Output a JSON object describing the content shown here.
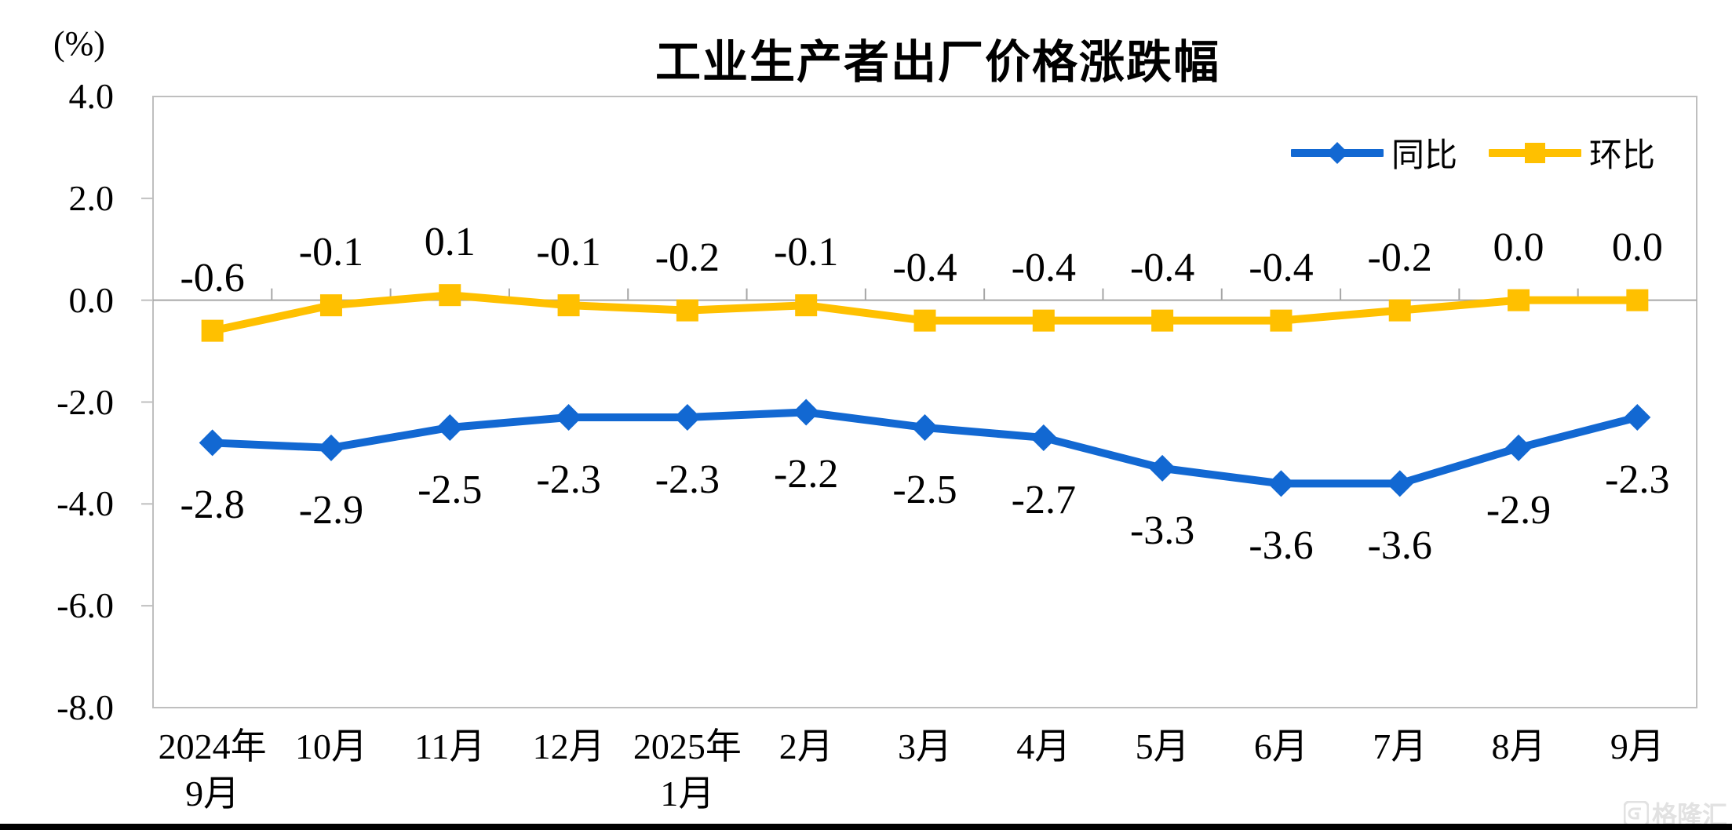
{
  "title": "工业生产者出厂价格涨跌幅",
  "unit_label": "(%)",
  "legend": [
    {
      "label": "同比",
      "color": "#1268D2",
      "marker": "diamond"
    },
    {
      "label": "环比",
      "color": "#FFC000",
      "marker": "square"
    }
  ],
  "watermark": "格隆汇",
  "colors": {
    "series_yoy": "#1268D2",
    "series_mom": "#FFC000",
    "axis_border": "#BFBFBF",
    "zero_line": "#A6A6A6",
    "text": "#000000"
  },
  "chart_data": {
    "type": "line",
    "title": "工业生产者出厂价格涨跌幅",
    "ylabel": "(%)",
    "ylim": [
      -8.0,
      4.0
    ],
    "y_ticks": [
      "4.0",
      "2.0",
      "0.0",
      "-2.0",
      "-4.0",
      "-6.0",
      "-8.0"
    ],
    "grid": false,
    "legend_position": "top-right",
    "categories": [
      [
        "2024年",
        "9月"
      ],
      [
        "10月"
      ],
      [
        "11月"
      ],
      [
        "12月"
      ],
      [
        "2025年",
        "1月"
      ],
      [
        "2月"
      ],
      [
        "3月"
      ],
      [
        "4月"
      ],
      [
        "5月"
      ],
      [
        "6月"
      ],
      [
        "7月"
      ],
      [
        "8月"
      ],
      [
        "9月"
      ]
    ],
    "series": [
      {
        "name": "同比",
        "color": "#1268D2",
        "marker": "diamond",
        "label_position": "below",
        "values": [
          -2.8,
          -2.9,
          -2.5,
          -2.3,
          -2.3,
          -2.2,
          -2.5,
          -2.7,
          -3.3,
          -3.6,
          -3.6,
          -2.9,
          -2.3
        ],
        "labels": [
          "-2.8",
          "-2.9",
          "-2.5",
          "-2.3",
          "-2.3",
          "-2.2",
          "-2.5",
          "-2.7",
          "-3.3",
          "-3.6",
          "-3.6",
          "-2.9",
          "-2.3"
        ]
      },
      {
        "name": "环比",
        "color": "#FFC000",
        "marker": "square",
        "label_position": "above",
        "values": [
          -0.6,
          -0.1,
          0.1,
          -0.1,
          -0.2,
          -0.1,
          -0.4,
          -0.4,
          -0.4,
          -0.4,
          -0.2,
          0.0,
          0.0
        ],
        "labels": [
          "-0.6",
          "-0.1",
          "0.1",
          "-0.1",
          "-0.2",
          "-0.1",
          "-0.4",
          "-0.4",
          "-0.4",
          "-0.4",
          "-0.2",
          "0.0",
          "0.0"
        ]
      }
    ]
  }
}
